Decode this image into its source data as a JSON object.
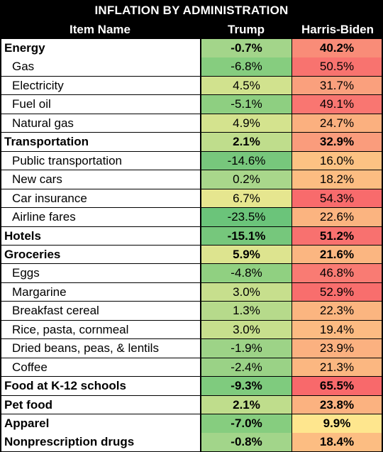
{
  "title": "INFLATION BY ADMINISTRATION",
  "columns": {
    "item": "Item Name",
    "trump": "Trump",
    "harris_biden": "Harris-Biden"
  },
  "colors": {
    "green": "#74c77b",
    "light_green": "#a9d98a",
    "yellow": "#e3e590",
    "pale_yellow": "#fde88f",
    "orange": "#fcb77f",
    "red": "#f8696b"
  },
  "rows": [
    {
      "name": "Energy",
      "category": true,
      "trump": "-0.7%",
      "harris_biden": "40.2%",
      "trump_color": "#a3d58a",
      "hb_color": "#f98c78"
    },
    {
      "name": "Gas",
      "category": false,
      "trump": "-6.8%",
      "harris_biden": "50.5%",
      "trump_color": "#86cd7f",
      "hb_color": "#f8736f"
    },
    {
      "name": "Electricity",
      "category": false,
      "trump": "4.5%",
      "harris_biden": "31.7%",
      "trump_color": "#d1e28e",
      "hb_color": "#faa07d"
    },
    {
      "name": "Fuel oil",
      "category": false,
      "trump": "-5.1%",
      "harris_biden": "49.1%",
      "trump_color": "#8ecf81",
      "hb_color": "#f97671"
    },
    {
      "name": "Natural gas",
      "category": false,
      "trump": "4.9%",
      "harris_biden": "24.7%",
      "trump_color": "#d4e38e",
      "hb_color": "#fbb07f"
    },
    {
      "name": "Transportation",
      "category": true,
      "trump": "2.1%",
      "harris_biden": "32.9%",
      "trump_color": "#bfdd8c",
      "hb_color": "#fa9c7c"
    },
    {
      "name": "Public transportation",
      "category": false,
      "trump": "-14.6%",
      "harris_biden": "16.0%",
      "trump_color": "#77c77c",
      "hb_color": "#fcc283"
    },
    {
      "name": "New cars",
      "category": false,
      "trump": "0.2%",
      "harris_biden": "18.2%",
      "trump_color": "#a9d78b",
      "hb_color": "#fcbd82"
    },
    {
      "name": "Car insurance",
      "category": false,
      "trump": "6.7%",
      "harris_biden": "54.3%",
      "trump_color": "#e6e68f",
      "hb_color": "#f86b6c"
    },
    {
      "name": "Airline fares",
      "category": false,
      "trump": "-23.5%",
      "harris_biden": "22.6%",
      "trump_color": "#6bc47a",
      "hb_color": "#fbb480"
    },
    {
      "name": "Hotels",
      "category": true,
      "trump": "-15.1%",
      "harris_biden": "51.2%",
      "trump_color": "#76c77c",
      "hb_color": "#f8716f"
    },
    {
      "name": "Groceries",
      "category": true,
      "trump": "5.9%",
      "harris_biden": "21.6%",
      "trump_color": "#dde48f",
      "hb_color": "#fbb681"
    },
    {
      "name": "Eggs",
      "category": false,
      "trump": "-4.8%",
      "harris_biden": "46.8%",
      "trump_color": "#90d081",
      "hb_color": "#f97b73"
    },
    {
      "name": "Margarine",
      "category": false,
      "trump": "3.0%",
      "harris_biden": "52.9%",
      "trump_color": "#c7df8d",
      "hb_color": "#f86e6d"
    },
    {
      "name": "Breakfast cereal",
      "category": false,
      "trump": "1.3%",
      "harris_biden": "22.3%",
      "trump_color": "#b6da8b",
      "hb_color": "#fbb580"
    },
    {
      "name": "Rice, pasta, cornmeal",
      "category": false,
      "trump": "3.0%",
      "harris_biden": "19.4%",
      "trump_color": "#c7df8d",
      "hb_color": "#fcbb82"
    },
    {
      "name": "Dried beans, peas, & lentils",
      "category": false,
      "trump": "-1.9%",
      "harris_biden": "23.9%",
      "trump_color": "#9dd387",
      "hb_color": "#fbb180"
    },
    {
      "name": "Coffee",
      "category": false,
      "trump": "-2.4%",
      "harris_biden": "21.3%",
      "trump_color": "#9ad286",
      "hb_color": "#fbb781"
    },
    {
      "name": "Food at K-12 schools",
      "category": true,
      "trump": "-9.3%",
      "harris_biden": "65.5%",
      "trump_color": "#7fcb7e",
      "hb_color": "#f8696b"
    },
    {
      "name": "Pet food",
      "category": true,
      "trump": "2.1%",
      "harris_biden": "23.8%",
      "trump_color": "#bfdd8c",
      "hb_color": "#fbb280"
    },
    {
      "name": "Apparel",
      "category": true,
      "trump": "-7.0%",
      "harris_biden": "9.9%",
      "trump_color": "#86cd7f",
      "hb_color": "#fee68e"
    },
    {
      "name": "Nonprescription drugs",
      "category": true,
      "trump": "-0.8%",
      "harris_biden": "18.4%",
      "trump_color": "#a2d58a",
      "hb_color": "#fcbd82"
    }
  ]
}
